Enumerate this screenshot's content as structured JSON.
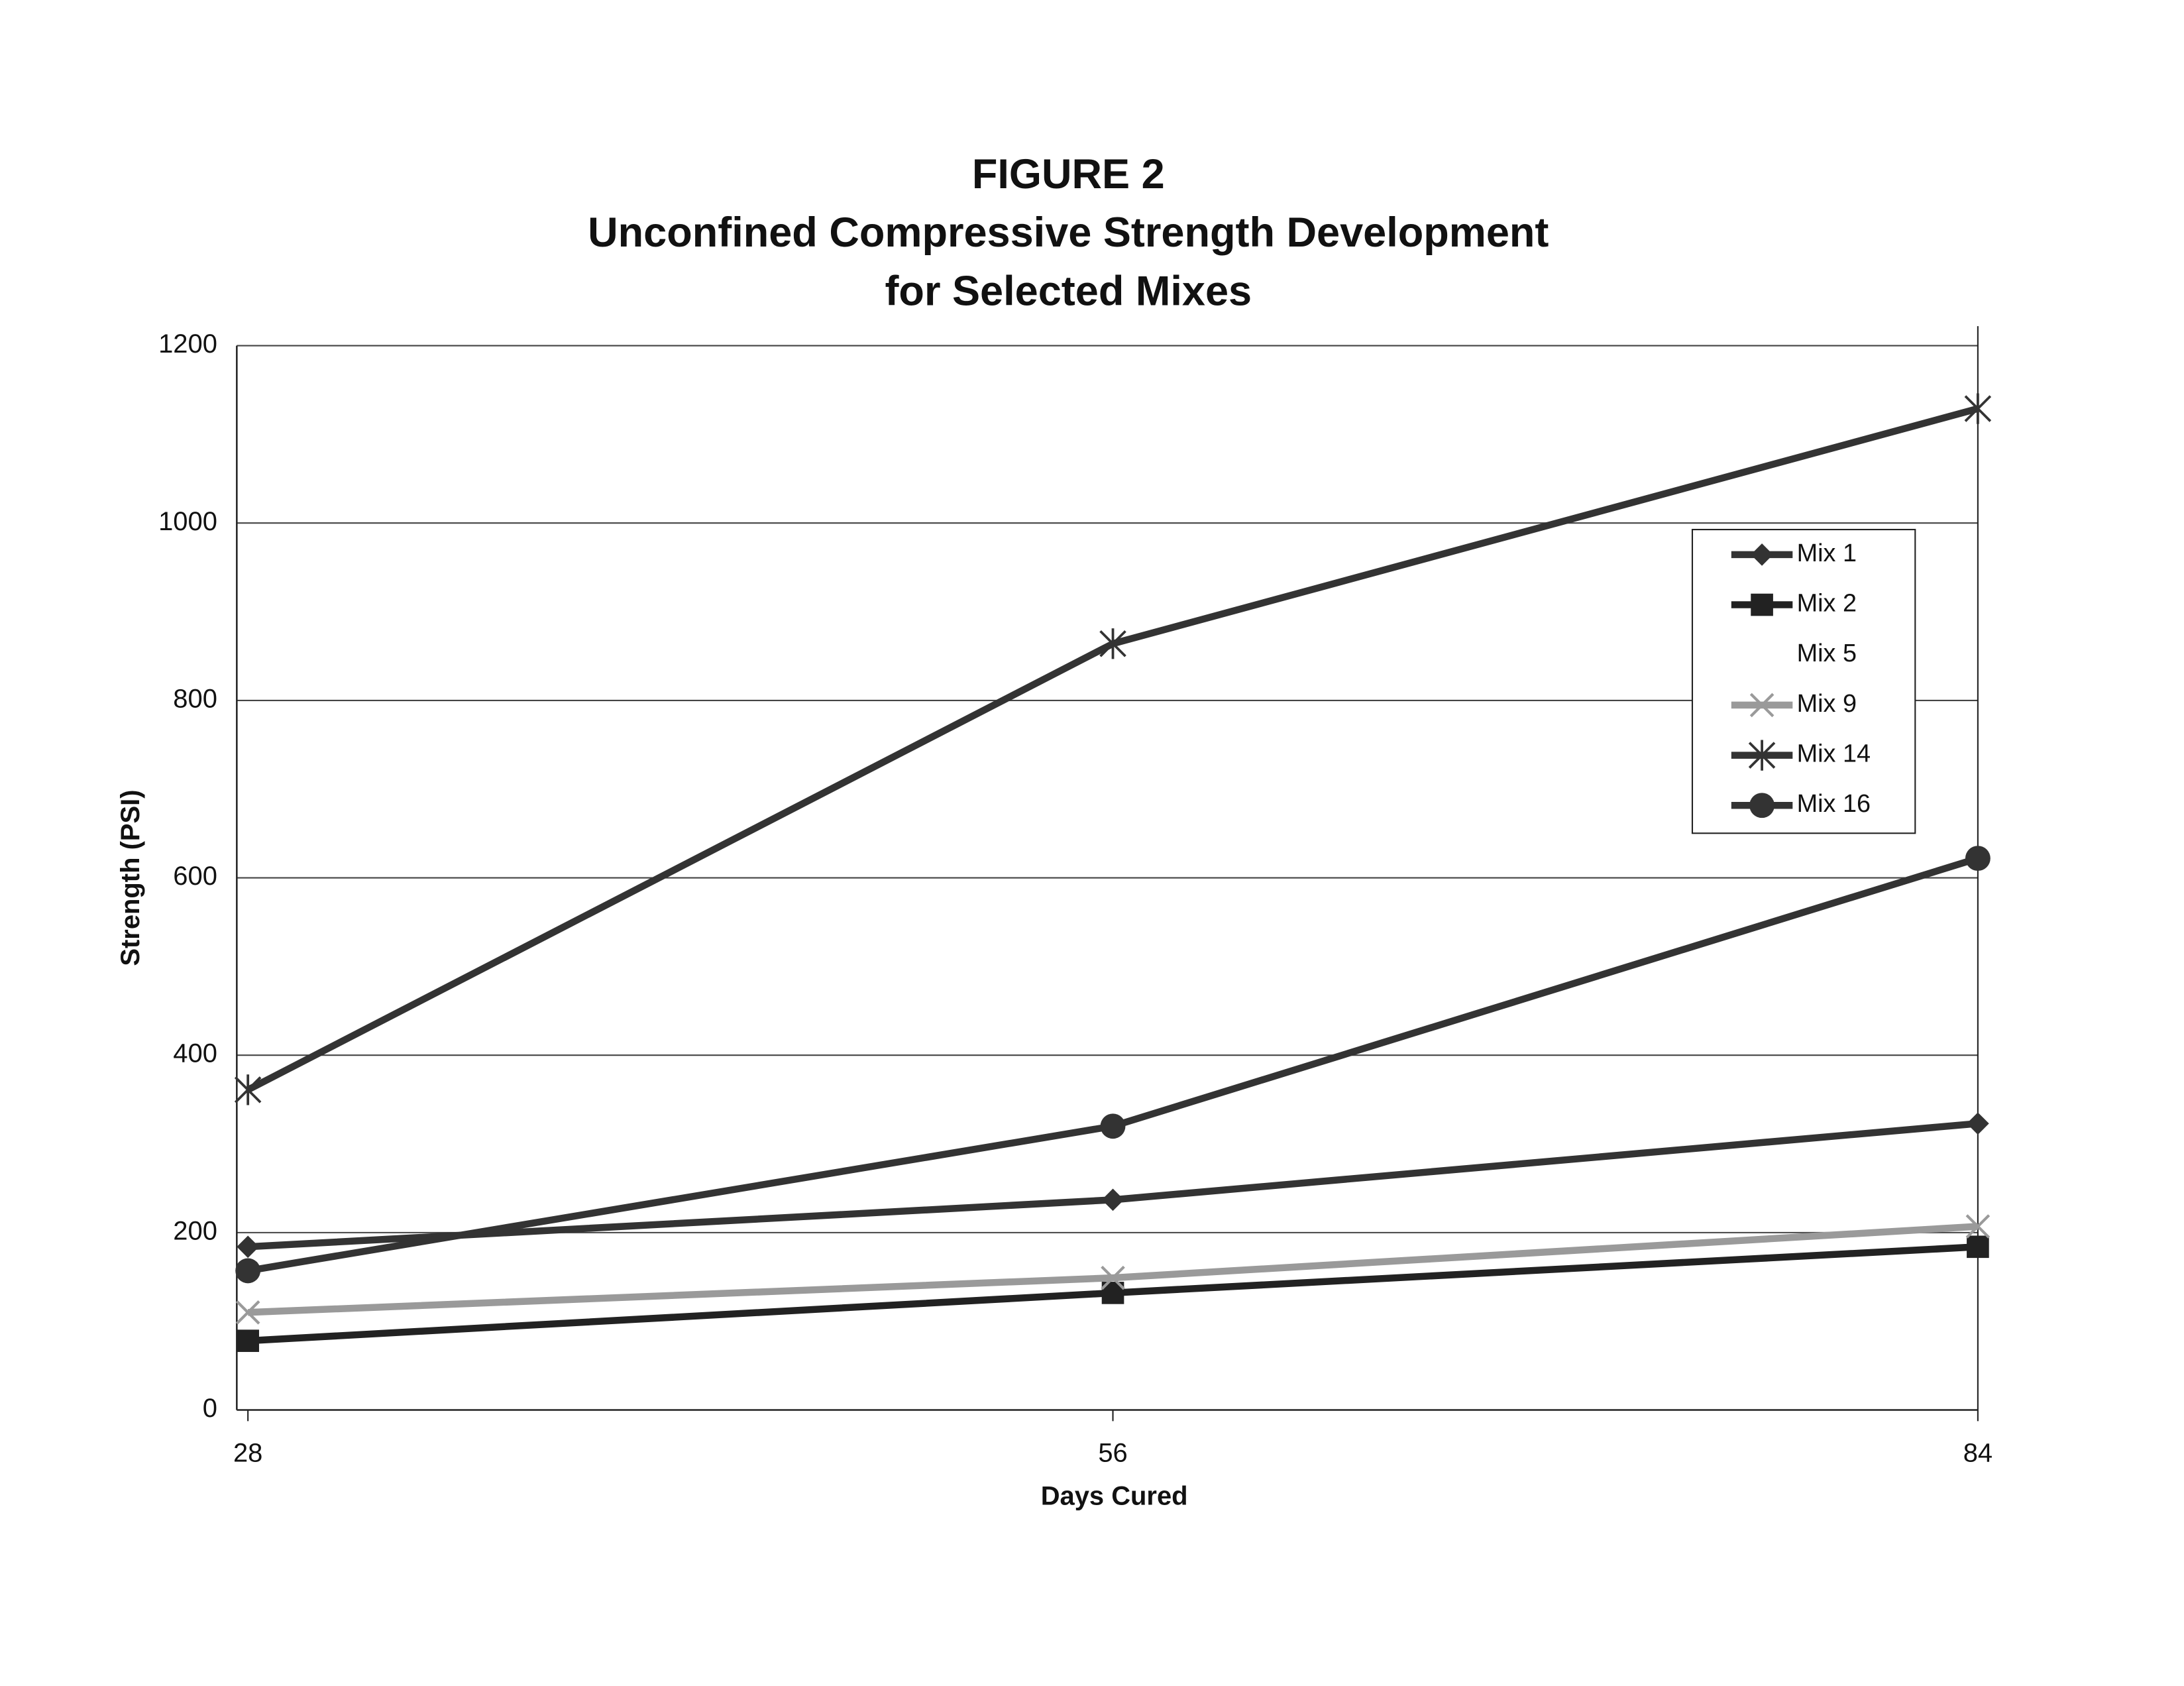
{
  "chart_data": {
    "type": "line",
    "title": [
      "FIGURE 2",
      "Unconfined Compressive Strength Development",
      "for Selected Mixes"
    ],
    "xlabel": "Days Cured",
    "ylabel": "Strength (PSI)",
    "x": [
      28,
      56,
      84
    ],
    "xlim": [
      28,
      84
    ],
    "xticks": [
      28,
      56,
      84
    ],
    "ylim": [
      0,
      1200
    ],
    "yticks": [
      0,
      200,
      400,
      600,
      800,
      1000,
      1200
    ],
    "grid": true,
    "legend": "upper right",
    "series": [
      {
        "name": "Mix 1",
        "color": "#333333",
        "marker": "diamond",
        "values": [
          184,
          237,
          323
        ]
      },
      {
        "name": "Mix 2",
        "color": "#222222",
        "marker": "square",
        "values": [
          78,
          132,
          184
        ]
      },
      {
        "name": "Mix 5",
        "color": "#ffffff",
        "values": [
          null,
          null,
          null
        ]
      },
      {
        "name": "Mix 9",
        "color": "#9a9a9a",
        "marker": "x",
        "values": [
          110,
          149,
          207
        ]
      },
      {
        "name": "Mix 14",
        "color": "#333333",
        "marker": "star",
        "values": [
          361,
          864,
          1129
        ]
      },
      {
        "name": "Mix 16",
        "color": "#333333",
        "marker": "circle",
        "values": [
          157,
          320,
          622
        ]
      }
    ]
  }
}
